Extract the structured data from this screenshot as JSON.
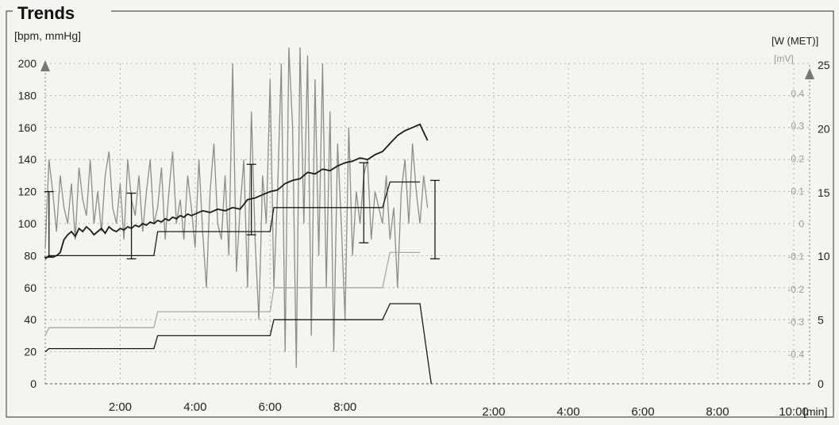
{
  "chart_data": {
    "type": "line",
    "title": "Trends",
    "ylabel_left": "[bpm, mmHg]",
    "ylabel_right_outer": "[W (MET)]",
    "ylabel_right_inner": "[mV]",
    "xlabel": "[min]",
    "left_axis": {
      "ylim": [
        0,
        200
      ],
      "ticks": [
        "0",
        "20",
        "40",
        "60",
        "80",
        "100",
        "120",
        "140",
        "160",
        "180",
        "200"
      ]
    },
    "right_outer_axis": {
      "ylim": [
        0,
        25
      ],
      "ticks": [
        "0",
        "5",
        "10",
        "15",
        "20",
        "25"
      ]
    },
    "right_inner_axis": {
      "ylim": [
        -0.4,
        0.4
      ],
      "ticks": [
        "-0.4",
        "-0.3",
        "-0.2",
        "-0.1",
        "0",
        "0.1",
        "0.2",
        "0.3",
        "0.4"
      ]
    },
    "x_ticks_first": [
      "2:00",
      "4:00",
      "6:00",
      "8:00"
    ],
    "x_ticks_second": [
      "2:00",
      "4:00",
      "6:00",
      "8:00",
      "10:00"
    ],
    "grid": true,
    "colors": {
      "dark": "#1a1a1a",
      "gray": "#8c8c8c",
      "grid": "#a0a0a0",
      "axis_arrow": "#777777"
    },
    "series": [
      {
        "role": "heart-rate",
        "x": [
          0,
          0.1,
          0.2,
          0.3,
          0.4,
          0.5,
          0.6,
          0.7,
          0.8,
          0.9,
          1.0,
          1.1,
          1.2,
          1.3,
          1.4,
          1.5,
          1.6,
          1.7,
          1.8,
          1.9,
          2.0,
          2.1,
          2.2,
          2.3,
          2.4,
          2.5,
          2.6,
          2.7,
          2.8,
          2.9,
          3.0,
          3.1,
          3.2,
          3.3,
          3.4,
          3.5,
          3.6,
          3.7,
          3.8,
          3.9,
          4.0,
          4.2,
          4.4,
          4.6,
          4.8,
          5.0,
          5.2,
          5.4,
          5.6,
          5.8,
          6.0,
          6.2,
          6.4,
          6.6,
          6.8,
          7.0,
          7.2,
          7.4,
          7.6,
          7.8,
          8.0,
          8.2,
          8.4,
          8.6,
          8.8,
          9.0,
          9.2,
          9.4,
          9.6,
          9.8,
          10.0,
          10.1,
          10.2
        ],
        "values": [
          78,
          80,
          79,
          80,
          82,
          90,
          93,
          95,
          92,
          97,
          95,
          98,
          96,
          93,
          95,
          97,
          94,
          98,
          96,
          95,
          97,
          96,
          98,
          97,
          99,
          98,
          100,
          99,
          101,
          100,
          102,
          101,
          103,
          102,
          104,
          103,
          105,
          104,
          106,
          105,
          106,
          108,
          107,
          109,
          108,
          110,
          109,
          115,
          116,
          118,
          120,
          121,
          125,
          127,
          128,
          132,
          131,
          134,
          133,
          136,
          138,
          139,
          141,
          140,
          143,
          145,
          150,
          155,
          158,
          160,
          162,
          157,
          152
        ]
      },
      {
        "role": "heart-rate-raw",
        "x": [
          0,
          0.1,
          0.2,
          0.3,
          0.4,
          0.5,
          0.6,
          0.7,
          0.8,
          0.9,
          1.0,
          1.1,
          1.2,
          1.3,
          1.4,
          1.5,
          1.6,
          1.7,
          1.8,
          1.9,
          2.0,
          2.1,
          2.2,
          2.3,
          2.4,
          2.5,
          2.6,
          2.7,
          2.8,
          2.9,
          3.0,
          3.1,
          3.2,
          3.3,
          3.4,
          3.5,
          3.6,
          3.7,
          3.8,
          3.9,
          4.0,
          4.1,
          4.2,
          4.3,
          4.4,
          4.5,
          4.6,
          4.7,
          4.8,
          4.9,
          5.0,
          5.1,
          5.2,
          5.3,
          5.4,
          5.5,
          5.6,
          5.7,
          5.8,
          5.9,
          6.0,
          6.1,
          6.2,
          6.3,
          6.4,
          6.5,
          6.6,
          6.7,
          6.8,
          6.9,
          7.0,
          7.1,
          7.2,
          7.3,
          7.4,
          7.5,
          7.6,
          7.7,
          7.8,
          7.9,
          8.0,
          8.1,
          8.2,
          8.3,
          8.4,
          8.5,
          8.6,
          8.7,
          8.8,
          8.9,
          9.0,
          9.1,
          9.2,
          9.3,
          9.4,
          9.5,
          9.6,
          9.7,
          9.8,
          9.9,
          10.0,
          10.1,
          10.2
        ],
        "values": [
          85,
          140,
          120,
          95,
          130,
          110,
          100,
          125,
          90,
          135,
          115,
          105,
          140,
          100,
          120,
          95,
          130,
          145,
          110,
          100,
          125,
          90,
          140,
          115,
          105,
          130,
          95,
          120,
          140,
          100,
          110,
          135,
          90,
          120,
          145,
          100,
          115,
          90,
          130,
          110,
          85,
          140,
          95,
          60,
          120,
          150,
          100,
          90,
          130,
          80,
          200,
          70,
          110,
          140,
          60,
          170,
          90,
          40,
          130,
          100,
          190,
          60,
          120,
          200,
          20,
          210,
          160,
          10,
          210,
          100,
          205,
          30,
          190,
          80,
          200,
          60,
          170,
          20,
          150,
          100,
          40,
          160,
          80,
          120,
          100,
          130,
          140,
          90,
          120,
          110,
          100,
          130,
          90,
          110,
          60,
          120,
          140,
          100,
          150,
          120,
          100,
          130,
          110
        ]
      },
      {
        "role": "upper-step",
        "x": [
          0,
          0.1,
          0.6,
          2.9,
          3.0,
          6.0,
          6.1,
          9.0,
          9.2,
          10.0
        ],
        "values": [
          78,
          80,
          80,
          80,
          95,
          95,
          110,
          110,
          126,
          126
        ]
      },
      {
        "role": "mid-step-gray",
        "x": [
          0,
          0.1,
          0.6,
          2.9,
          3.0,
          6.0,
          6.1,
          9.0,
          9.2,
          10.0
        ],
        "values": [
          30,
          35,
          35,
          35,
          45,
          45,
          60,
          60,
          82,
          82
        ]
      },
      {
        "role": "lower-step",
        "x": [
          0,
          0.1,
          0.6,
          2.9,
          3.0,
          6.0,
          6.1,
          9.0,
          9.2,
          10.0,
          10.3
        ],
        "values": [
          20,
          22,
          22,
          22,
          30,
          30,
          40,
          40,
          50,
          50,
          0
        ]
      },
      {
        "role": "bp-error-bars",
        "x": [
          0.1,
          2.3,
          5.5,
          8.5,
          10.4
        ],
        "values_high": [
          120,
          119,
          137,
          138,
          127
        ],
        "values_low": [
          79,
          78,
          93,
          88,
          78
        ]
      }
    ]
  }
}
